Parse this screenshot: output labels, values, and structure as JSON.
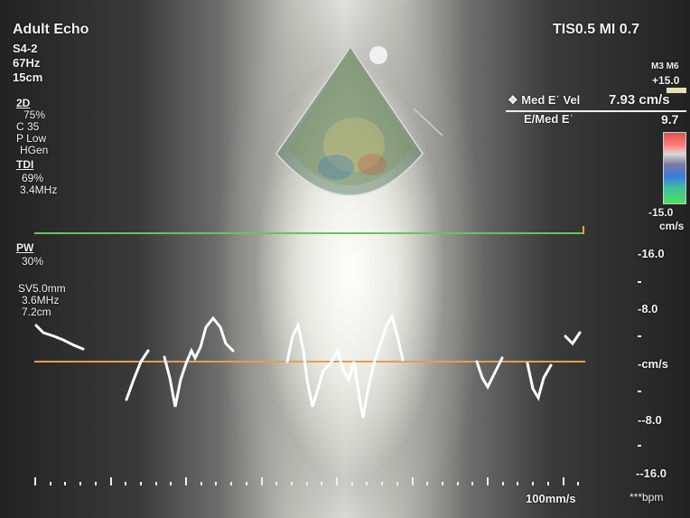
{
  "header": {
    "mode": "Adult Echo",
    "tis_mi": "TIS0.5   MI 0.7"
  },
  "probe": {
    "name": "S4-2",
    "frame_rate": "67Hz",
    "depth": "15cm"
  },
  "params_2d": {
    "title": "2D",
    "gain": "75%",
    "compression": "C 35",
    "power": "P Low",
    "frequency": "HGen"
  },
  "params_tdi": {
    "title": "TDI",
    "gain": "69%",
    "frequency": "3.4MHz"
  },
  "params_pw": {
    "title": "PW",
    "gain": "30%",
    "sample_volume": "SV5.0mm",
    "frequency": "3.6MHz",
    "depth": "7.2cm"
  },
  "color_scale": {
    "label": "M3 M6",
    "top": "+15.0",
    "bottom": "-15.0",
    "unit": "cm/s"
  },
  "measurements": [
    {
      "name": "❖ Med Eˈ Vel",
      "value": "7.93 cm/s"
    },
    {
      "name": "E/Med Eˈ",
      "value": "9.7"
    }
  ],
  "velocity_scale": {
    "labels": [
      "-16.0",
      "-8.0",
      "-cm/s",
      "--8.0",
      "--16.0"
    ]
  },
  "footer": {
    "sweep_speed": "100mm/s",
    "heart_rate": "***bpm"
  },
  "colors": {
    "baseline": "#e8a040",
    "cursor_line": "#5fc85f",
    "sector_outline": "#dddddd"
  }
}
